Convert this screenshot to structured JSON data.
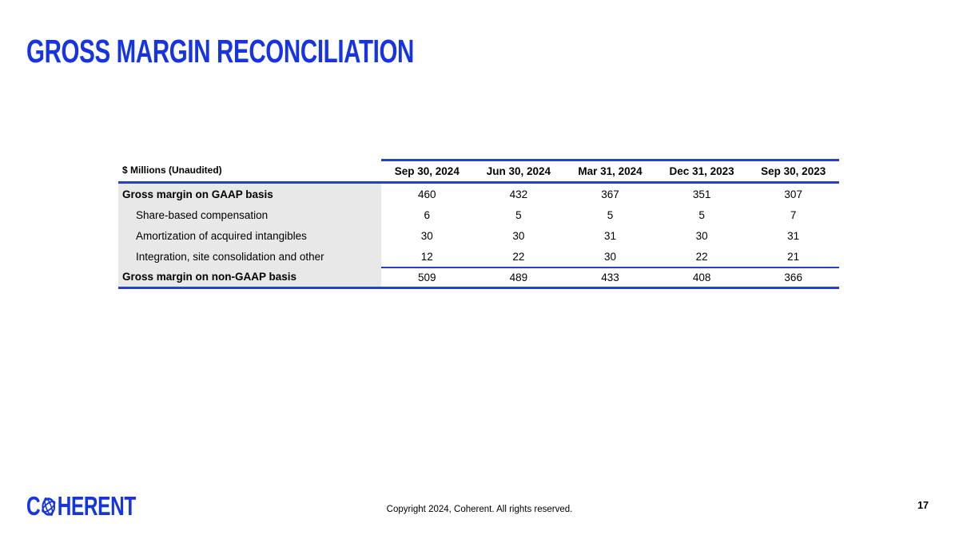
{
  "slide": {
    "title": "GROSS MARGIN RECONCILIATION",
    "page_number": "17",
    "copyright": "Copyright 2024, Coherent. All rights reserved.",
    "logo": {
      "prefix": "C",
      "suffix": "HERENT",
      "icon": "atom-globe-icon"
    }
  },
  "colors": {
    "accent_blue": "#1634DF",
    "table_line_blue": "#2342C8",
    "label_column_bg": "#E8E8E8",
    "text": "#000000"
  },
  "table": {
    "caption": "$ Millions (Unaudited)",
    "columns": [
      "Sep 30, 2024",
      "Jun 30, 2024",
      "Mar 31, 2024",
      "Dec 31, 2023",
      "Sep 30, 2023"
    ],
    "rows": [
      {
        "label": "Gross margin on GAAP basis",
        "style": "total",
        "values": [
          "460",
          "432",
          "367",
          "351",
          "307"
        ]
      },
      {
        "label": "Share-based compensation",
        "style": "indent",
        "values": [
          "6",
          "5",
          "5",
          "5",
          "7"
        ]
      },
      {
        "label": "Amortization of acquired intangibles",
        "style": "indent",
        "values": [
          "30",
          "30",
          "31",
          "30",
          "31"
        ]
      },
      {
        "label": "Integration, site consolidation and other",
        "style": "indent",
        "values": [
          "12",
          "22",
          "30",
          "22",
          "21"
        ]
      },
      {
        "label": "Gross margin on non-GAAP basis",
        "style": "total-subline",
        "values": [
          "509",
          "489",
          "433",
          "408",
          "366"
        ]
      }
    ]
  }
}
